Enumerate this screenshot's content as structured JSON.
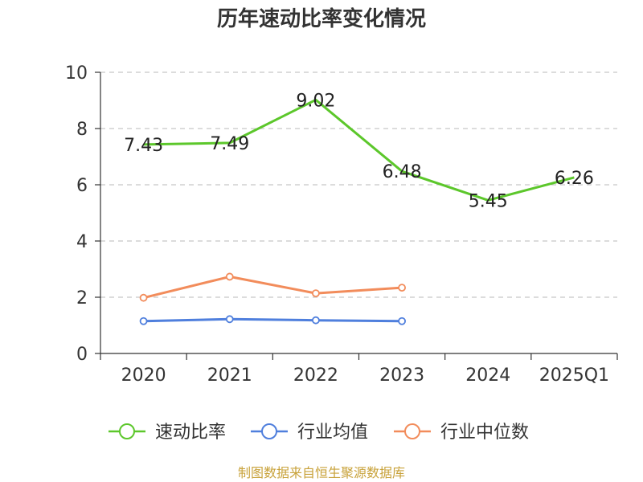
{
  "chart_data": {
    "type": "line",
    "title": "历年速动比率变化情况",
    "categories": [
      "2020",
      "2021",
      "2022",
      "2023",
      "2024",
      "2025Q1"
    ],
    "ylim": [
      0,
      10
    ],
    "yticks": [
      "0",
      "2",
      "4",
      "6",
      "8",
      "10"
    ],
    "grid": true,
    "legend_position": "bottom",
    "series": [
      {
        "name": "速动比率",
        "color": "#5cc72b",
        "values": [
          7.43,
          7.49,
          9.02,
          6.48,
          5.45,
          6.26
        ],
        "labels": [
          "7.43",
          "7.49",
          "9.02",
          "6.48",
          "5.45",
          "6.26"
        ],
        "show_labels": true
      },
      {
        "name": "行业均值",
        "color": "#4f7fdd",
        "values": [
          1.15,
          1.22,
          1.18,
          1.15,
          null,
          null
        ],
        "show_labels": false
      },
      {
        "name": "行业中位数",
        "color": "#f28c5b",
        "values": [
          1.98,
          2.73,
          2.14,
          2.34,
          null,
          null
        ],
        "show_labels": false
      }
    ]
  },
  "source": "制图数据来自恒生聚源数据库"
}
